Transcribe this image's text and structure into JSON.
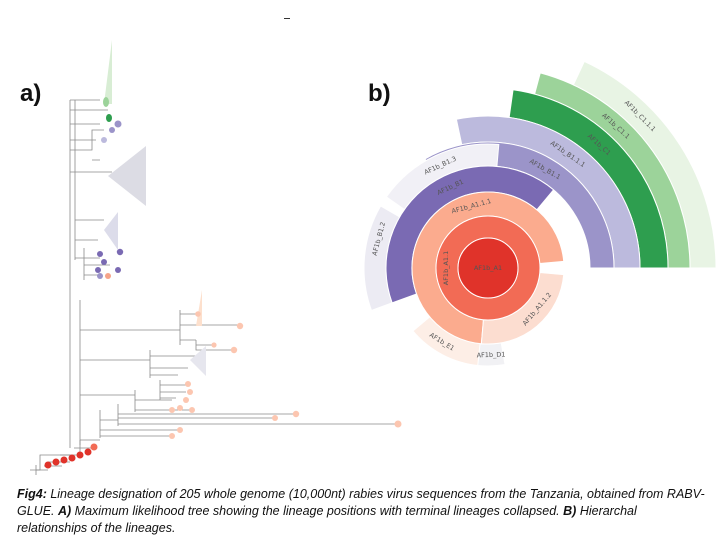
{
  "panels": {
    "a": "a)",
    "b": "b)"
  },
  "caption": {
    "fig_label": "Fig4:",
    "text1": " Lineage designation of 205 whole genome (10,000nt) rabies virus sequences from the Tanzania, obtained from RABV-GLUE. ",
    "a_label": "A)",
    "text2": " Maximum likelihood tree showing the lineage positions with terminal lineages collapsed. ",
    "b_label": "B)",
    "text3": " Hierarchal relationships of the lineages."
  },
  "sunburst": {
    "rings": [
      {
        "name": "AF1b_A1",
        "color": "#e0332a"
      },
      {
        "name": "AF1b_A1.1",
        "color": "#f26b55"
      },
      {
        "name": "AF1b_A1.1.1",
        "color": "#fbab8e"
      },
      {
        "name": "AF1b_A1.1.2",
        "color": "#fcddd0"
      },
      {
        "name": "AF1b_E1",
        "color": "#fdeee6"
      },
      {
        "name": "AF1b_D1",
        "color": "#f1f1f4"
      },
      {
        "name": "AF1b_B1",
        "color": "#7a6ab3"
      },
      {
        "name": "AF1b_B1.1",
        "color": "#9b94c9"
      },
      {
        "name": "AF1b_B1.1.1",
        "color": "#bcbadd"
      },
      {
        "name": "AF1b_B1.2",
        "color": "#ecebf3"
      },
      {
        "name": "AF1b_B1.3",
        "color": "#f1f0f6"
      },
      {
        "name": "AF1b_C1",
        "color": "#2e9e4f"
      },
      {
        "name": "AF1b_C1.1",
        "color": "#9cd39a"
      },
      {
        "name": "AF1b_C1.1.1",
        "color": "#e8f4e4"
      }
    ]
  }
}
